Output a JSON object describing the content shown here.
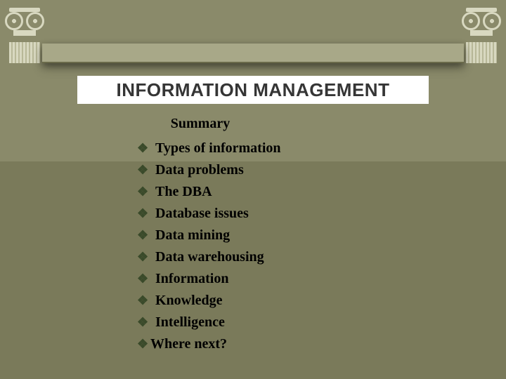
{
  "colors": {
    "background": "#7a7a5a",
    "header_band": "#8a8a6a",
    "lintel": "#a8a888",
    "column_light": "#d8d8c0",
    "column_shade": "#b8b898",
    "title_box_bg": "#ffffff",
    "title_text": "#353535",
    "bullet_marker": "#3a4a2a",
    "body_text": "#000000"
  },
  "typography": {
    "title_font": "Arial",
    "title_size_pt": 20,
    "title_weight": "bold",
    "body_font": "Times New Roman",
    "body_size_pt": 15,
    "body_weight": "bold",
    "summary_size_pt": 15
  },
  "title": "INFORMATION MANAGEMENT",
  "summary_label": "Summary",
  "bullets": [
    {
      "text": "Types of information",
      "tight": false
    },
    {
      "text": "Data problems",
      "tight": false
    },
    {
      "text": "The DBA",
      "tight": false
    },
    {
      "text": "Database issues",
      "tight": false
    },
    {
      "text": "Data mining",
      "tight": false
    },
    {
      "text": "Data warehousing",
      "tight": false
    },
    {
      "text": "Information",
      "tight": false
    },
    {
      "text": "Knowledge",
      "tight": false
    },
    {
      "text": "Intelligence",
      "tight": false
    },
    {
      "text": "Where next?",
      "tight": true
    }
  ],
  "bullet_glyph": "❖"
}
